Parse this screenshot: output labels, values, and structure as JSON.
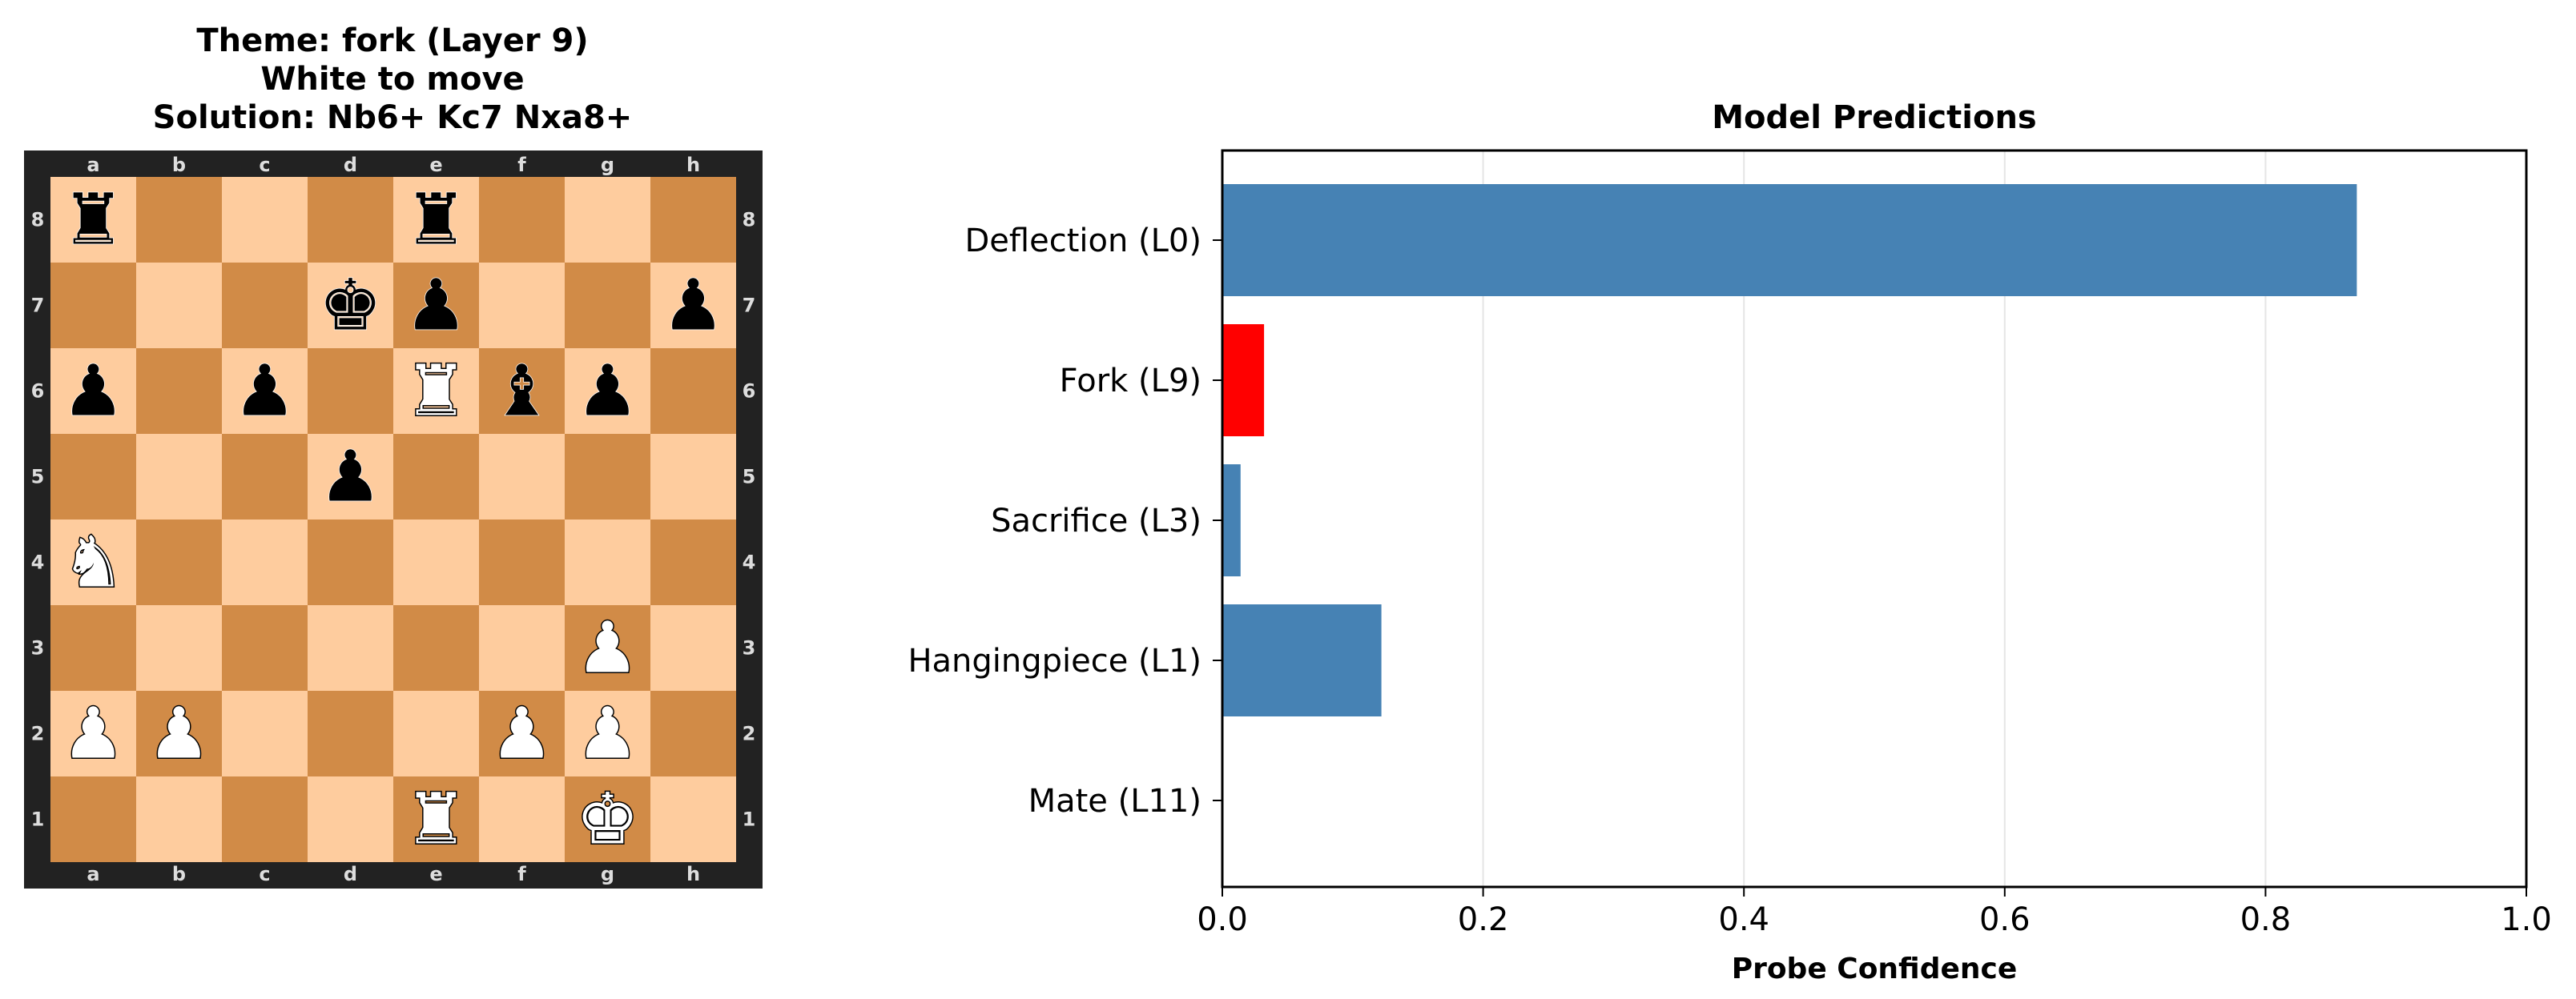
{
  "board_panel": {
    "title_line1": "Theme: fork (Layer 9)",
    "title_line2": "White to move",
    "title_line3": "Solution: Nb6+ Kc7 Nxa8+",
    "files": [
      "a",
      "b",
      "c",
      "d",
      "e",
      "f",
      "g",
      "h"
    ],
    "ranks": [
      "8",
      "7",
      "6",
      "5",
      "4",
      "3",
      "2",
      "1"
    ],
    "colors": {
      "light": "#fecc9e",
      "dark": "#d18b47",
      "frame": "#222222"
    },
    "position": [
      {
        "sq": "a8",
        "piece": "black-rook"
      },
      {
        "sq": "e8",
        "piece": "black-rook"
      },
      {
        "sq": "d7",
        "piece": "black-king"
      },
      {
        "sq": "e7",
        "piece": "black-pawn"
      },
      {
        "sq": "h7",
        "piece": "black-pawn"
      },
      {
        "sq": "a6",
        "piece": "black-pawn"
      },
      {
        "sq": "c6",
        "piece": "black-pawn"
      },
      {
        "sq": "e6",
        "piece": "white-rook"
      },
      {
        "sq": "f6",
        "piece": "black-bishop"
      },
      {
        "sq": "g6",
        "piece": "black-pawn"
      },
      {
        "sq": "d5",
        "piece": "black-pawn"
      },
      {
        "sq": "a4",
        "piece": "white-knight"
      },
      {
        "sq": "g3",
        "piece": "white-pawn"
      },
      {
        "sq": "a2",
        "piece": "white-pawn"
      },
      {
        "sq": "b2",
        "piece": "white-pawn"
      },
      {
        "sq": "f2",
        "piece": "white-pawn"
      },
      {
        "sq": "g2",
        "piece": "white-pawn"
      },
      {
        "sq": "e1",
        "piece": "white-rook"
      },
      {
        "sq": "g1",
        "piece": "white-king"
      }
    ]
  },
  "chart_data": {
    "type": "bar",
    "orientation": "horizontal",
    "title": "Model Predictions",
    "xlabel": "Probe Confidence",
    "ylabel": "",
    "categories": [
      "Deflection (L0)",
      "Fork (L9)",
      "Sacrifice (L3)",
      "Hangingpiece (L1)",
      "Mate (L11)"
    ],
    "values": [
      0.87,
      0.032,
      0.014,
      0.122,
      0.0
    ],
    "bar_colors": [
      "#4682b4",
      "#ff0000",
      "#4682b4",
      "#4682b4",
      "#4682b4"
    ],
    "xlim": [
      0,
      1.0
    ],
    "xticks": [
      0.0,
      0.2,
      0.4,
      0.6,
      0.8,
      1.0
    ],
    "xtick_labels": [
      "0.0",
      "0.2",
      "0.4",
      "0.6",
      "0.8",
      "1.0"
    ],
    "grid": "vertical"
  }
}
